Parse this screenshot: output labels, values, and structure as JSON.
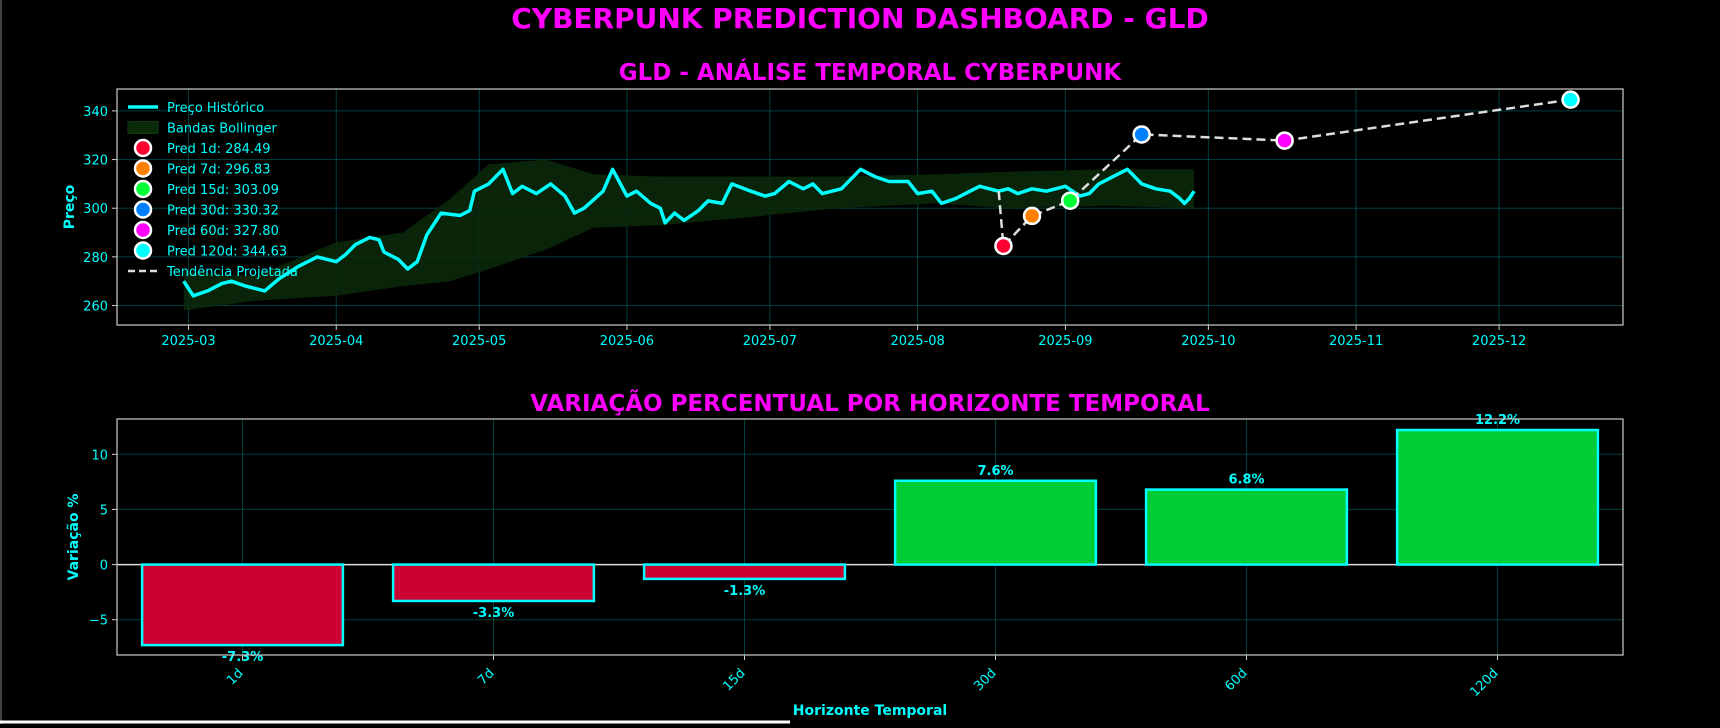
{
  "dashboard_title": "CYBERPUNK PREDICTION DASHBOARD - GLD",
  "colors": {
    "background": "#000000",
    "title": "#ff00ff",
    "accent": "#00ffff",
    "bollinger_fill": "#0a2a0a",
    "trend_line": "#dddddd",
    "bar_positive": "#00cc33",
    "bar_negative": "#cc0033"
  },
  "chart_data": [
    {
      "type": "line",
      "title": "GLD - ANÁLISE TEMPORAL CYBERPUNK",
      "xlabel": "",
      "ylabel": "Preço",
      "x_range": [
        "2025-02-14",
        "2025-12-27"
      ],
      "ylim": [
        252,
        349
      ],
      "x_ticks": [
        "2025-03",
        "2025-04",
        "2025-05",
        "2025-06",
        "2025-07",
        "2025-08",
        "2025-09",
        "2025-10",
        "2025-11",
        "2025-12"
      ],
      "y_ticks": [
        260,
        280,
        300,
        320,
        340
      ],
      "grid": true,
      "legend_position": "top-left",
      "historical": {
        "name": "Preço Histórico",
        "color": "#00ffff",
        "points": [
          [
            "2025-02-28",
            270
          ],
          [
            "2025-03-02",
            264
          ],
          [
            "2025-03-05",
            266
          ],
          [
            "2025-03-08",
            269
          ],
          [
            "2025-03-10",
            270
          ],
          [
            "2025-03-13",
            268
          ],
          [
            "2025-03-17",
            266
          ],
          [
            "2025-03-20",
            271
          ],
          [
            "2025-03-24",
            276
          ],
          [
            "2025-03-28",
            280
          ],
          [
            "2025-04-01",
            278
          ],
          [
            "2025-04-03",
            281
          ],
          [
            "2025-04-05",
            285
          ],
          [
            "2025-04-08",
            288
          ],
          [
            "2025-04-10",
            287
          ],
          [
            "2025-04-11",
            282
          ],
          [
            "2025-04-14",
            279
          ],
          [
            "2025-04-16",
            275
          ],
          [
            "2025-04-18",
            278
          ],
          [
            "2025-04-20",
            289
          ],
          [
            "2025-04-23",
            298
          ],
          [
            "2025-04-27",
            297
          ],
          [
            "2025-04-29",
            299
          ],
          [
            "2025-04-30",
            307
          ],
          [
            "2025-05-03",
            310
          ],
          [
            "2025-05-06",
            316
          ],
          [
            "2025-05-08",
            306
          ],
          [
            "2025-05-10",
            309
          ],
          [
            "2025-05-13",
            306
          ],
          [
            "2025-05-16",
            310
          ],
          [
            "2025-05-19",
            305
          ],
          [
            "2025-05-21",
            298
          ],
          [
            "2025-05-23",
            300
          ],
          [
            "2025-05-27",
            307
          ],
          [
            "2025-05-29",
            316
          ],
          [
            "2025-06-01",
            305
          ],
          [
            "2025-06-03",
            307
          ],
          [
            "2025-06-06",
            302
          ],
          [
            "2025-06-08",
            300
          ],
          [
            "2025-06-09",
            294
          ],
          [
            "2025-06-11",
            298
          ],
          [
            "2025-06-13",
            295
          ],
          [
            "2025-06-16",
            299
          ],
          [
            "2025-06-18",
            303
          ],
          [
            "2025-06-21",
            302
          ],
          [
            "2025-06-23",
            310
          ],
          [
            "2025-06-27",
            307
          ],
          [
            "2025-06-30",
            305
          ],
          [
            "2025-07-02",
            306
          ],
          [
            "2025-07-05",
            311
          ],
          [
            "2025-07-08",
            308
          ],
          [
            "2025-07-10",
            310
          ],
          [
            "2025-07-12",
            306
          ],
          [
            "2025-07-16",
            308
          ],
          [
            "2025-07-20",
            316
          ],
          [
            "2025-07-23",
            313
          ],
          [
            "2025-07-26",
            311
          ],
          [
            "2025-07-30",
            311
          ],
          [
            "2025-08-01",
            306
          ],
          [
            "2025-08-04",
            307
          ],
          [
            "2025-08-06",
            302
          ],
          [
            "2025-08-09",
            304
          ],
          [
            "2025-08-11",
            306
          ],
          [
            "2025-08-14",
            309
          ],
          [
            "2025-08-18",
            307
          ],
          [
            "2025-08-20",
            308
          ],
          [
            "2025-08-22",
            306
          ],
          [
            "2025-08-25",
            308
          ],
          [
            "2025-08-28",
            307
          ],
          [
            "2025-09-01",
            309
          ],
          [
            "2025-09-04",
            305
          ],
          [
            "2025-09-06",
            306
          ],
          [
            "2025-09-08",
            310
          ],
          [
            "2025-09-11",
            313
          ],
          [
            "2025-09-14",
            316
          ],
          [
            "2025-09-17",
            310
          ],
          [
            "2025-09-20",
            308
          ],
          [
            "2025-09-23",
            307
          ],
          [
            "2025-09-25",
            304
          ],
          [
            "2025-09-26",
            302
          ],
          [
            "2025-09-27",
            304
          ],
          [
            "2025-09-28",
            307
          ]
        ]
      },
      "bollinger": {
        "name": "Bandas Bollinger",
        "upper": [
          [
            "2025-02-28",
            274
          ],
          [
            "2025-03-15",
            272
          ],
          [
            "2025-04-01",
            286
          ],
          [
            "2025-04-15",
            290
          ],
          [
            "2025-04-25",
            304
          ],
          [
            "2025-05-03",
            318
          ],
          [
            "2025-05-15",
            320
          ],
          [
            "2025-05-25",
            314
          ],
          [
            "2025-06-08",
            313
          ],
          [
            "2025-06-25",
            313
          ],
          [
            "2025-07-15",
            313
          ],
          [
            "2025-08-05",
            314
          ],
          [
            "2025-08-20",
            315
          ],
          [
            "2025-09-10",
            316
          ],
          [
            "2025-09-28",
            316
          ]
        ],
        "lower": [
          [
            "2025-02-28",
            258
          ],
          [
            "2025-03-15",
            262
          ],
          [
            "2025-04-01",
            264
          ],
          [
            "2025-04-15",
            268
          ],
          [
            "2025-04-25",
            270
          ],
          [
            "2025-05-03",
            275
          ],
          [
            "2025-05-15",
            283
          ],
          [
            "2025-05-25",
            292
          ],
          [
            "2025-06-08",
            293
          ],
          [
            "2025-06-25",
            296
          ],
          [
            "2025-07-15",
            300
          ],
          [
            "2025-08-05",
            302
          ],
          [
            "2025-08-20",
            300
          ],
          [
            "2025-09-10",
            301
          ],
          [
            "2025-09-28",
            300
          ]
        ]
      },
      "trend": {
        "name": "Tendência Projetada",
        "points": [
          [
            "2025-08-18",
            307
          ],
          [
            "2025-08-19",
            284.49
          ],
          [
            "2025-08-25",
            296.83
          ],
          [
            "2025-09-02",
            303.09
          ],
          [
            "2025-09-17",
            330.32
          ],
          [
            "2025-10-17",
            327.8
          ],
          [
            "2025-12-16",
            344.63
          ]
        ]
      },
      "predictions": [
        {
          "label": "Pred 1d: 284.49",
          "date": "2025-08-19",
          "value": 284.49,
          "color": "#ff0033"
        },
        {
          "label": "Pred 7d: 296.83",
          "date": "2025-08-25",
          "value": 296.83,
          "color": "#ff8000"
        },
        {
          "label": "Pred 15d: 303.09",
          "date": "2025-09-02",
          "value": 303.09,
          "color": "#00ff33"
        },
        {
          "label": "Pred 30d: 330.32",
          "date": "2025-09-17",
          "value": 330.32,
          "color": "#0080ff"
        },
        {
          "label": "Pred 60d: 327.80",
          "date": "2025-10-17",
          "value": 327.8,
          "color": "#ff00ff"
        },
        {
          "label": "Pred 120d: 344.63",
          "date": "2025-12-16",
          "value": 344.63,
          "color": "#00ffff"
        }
      ]
    },
    {
      "type": "bar",
      "title": "VARIAÇÃO PERCENTUAL POR HORIZONTE TEMPORAL",
      "xlabel": "Horizonte Temporal",
      "ylabel": "Variação %",
      "categories": [
        "1d",
        "7d",
        "15d",
        "30d",
        "60d",
        "120d"
      ],
      "values": [
        -7.3,
        -3.3,
        -1.3,
        7.6,
        6.8,
        12.2
      ],
      "value_labels": [
        "-7.3%",
        "-3.3%",
        "-1.3%",
        "7.6%",
        "6.8%",
        "12.2%"
      ],
      "ylim": [
        -8.2,
        13.2
      ],
      "y_ticks": [
        -5,
        0,
        5,
        10
      ],
      "grid": true
    }
  ]
}
